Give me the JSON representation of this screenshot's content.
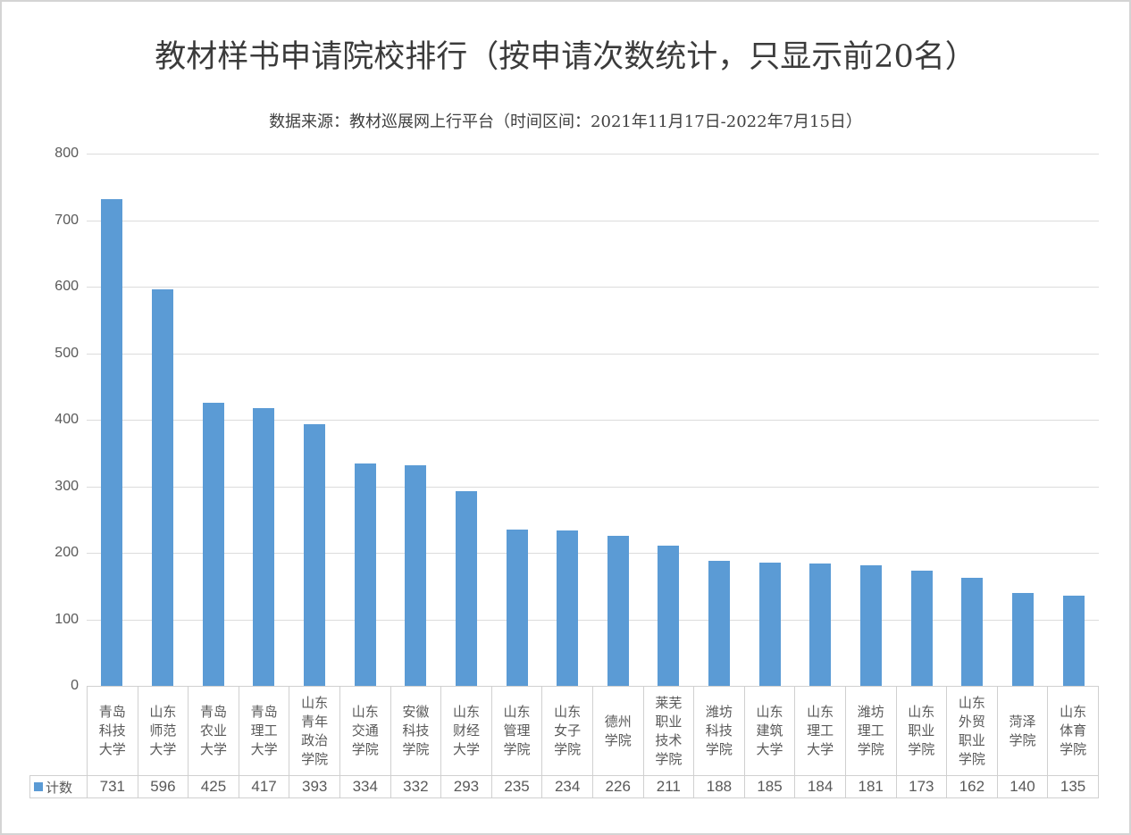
{
  "title": "教材样书申请院校排行（按申请次数统计，只显示前20名）",
  "subtitle": "数据来源：教材巡展网上行平台（时间区间：2021年11月17日-2022年7月15日）",
  "legend": {
    "swatch_icon": "blue-square-icon",
    "label": "计数"
  },
  "colors": {
    "bar": "#5B9BD5",
    "gridline": "#dcdcdc",
    "table_border": "#d0d0d0",
    "axis_text": "#595959",
    "title_text": "#3b3b3b"
  },
  "chart_data": {
    "type": "bar",
    "title": "教材样书申请院校排行（按申请次数统计，只显示前20名）",
    "subtitle": "数据来源：教材巡展网上行平台（时间区间：2021年11月17日-2022年7月15日）",
    "categories": [
      "青岛科技大学",
      "山东师范大学",
      "青岛农业大学",
      "青岛理工大学",
      "山东青年政治学院",
      "山东交通学院",
      "安徽科技学院",
      "山东财经大学",
      "山东管理学院",
      "山东女子学院",
      "德州学院",
      "莱芜职业技术学院",
      "潍坊科技学院",
      "山东建筑大学",
      "山东理工大学",
      "潍坊理工学院",
      "山东职业学院",
      "山东外贸职业学院",
      "菏泽学院",
      "山东体育学院"
    ],
    "series": [
      {
        "name": "计数",
        "values": [
          731,
          596,
          425,
          417,
          393,
          334,
          332,
          293,
          235,
          234,
          226,
          211,
          188,
          185,
          184,
          181,
          173,
          162,
          140,
          135
        ]
      }
    ],
    "xlabel": "",
    "ylabel": "",
    "ylim": [
      0,
      800
    ],
    "ytick_step": 100,
    "yticks": [
      0,
      100,
      200,
      300,
      400,
      500,
      600,
      700,
      800
    ],
    "grid": true,
    "legend_position": "bottom-left-table",
    "data_table_shown": true
  }
}
